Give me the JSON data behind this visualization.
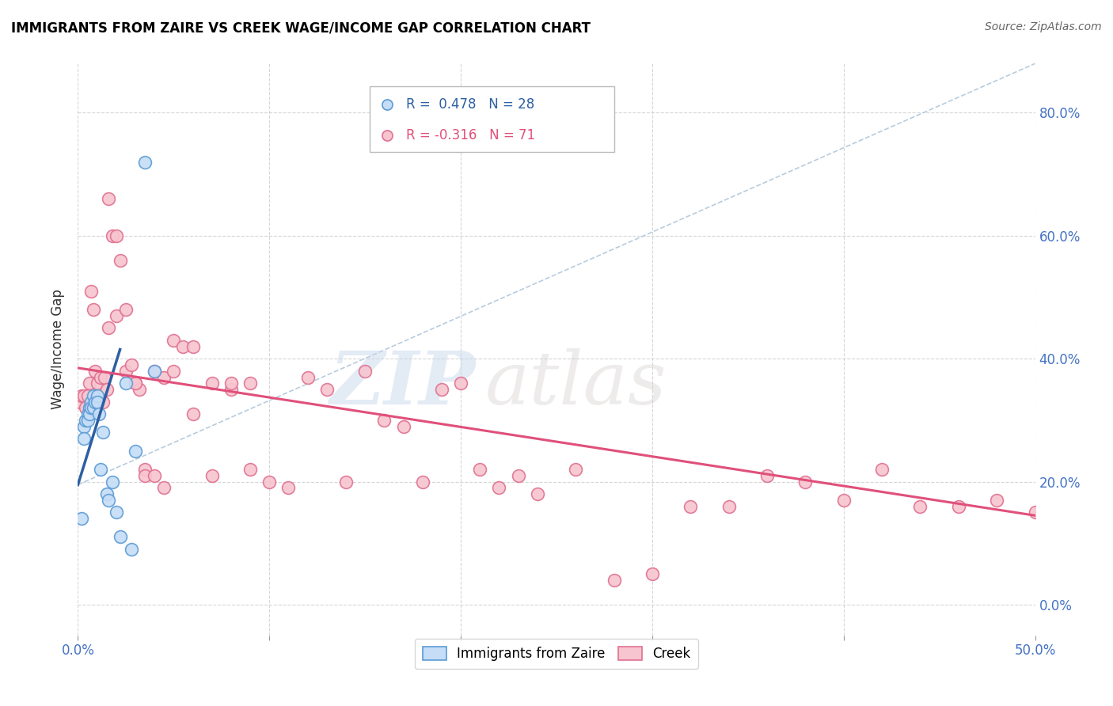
{
  "title": "IMMIGRANTS FROM ZAIRE VS CREEK WAGE/INCOME GAP CORRELATION CHART",
  "source": "Source: ZipAtlas.com",
  "ylabel": "Wage/Income Gap",
  "xlim": [
    0.0,
    0.5
  ],
  "ylim": [
    -0.05,
    0.88
  ],
  "yticks_right": [
    0.0,
    0.2,
    0.4,
    0.6,
    0.8
  ],
  "ytick_right_labels": [
    "0.0%",
    "20.0%",
    "40.0%",
    "60.0%",
    "80.0%"
  ],
  "legend1_R": "0.478",
  "legend1_N": "28",
  "legend2_R": "-0.316",
  "legend2_N": "71",
  "color_blue_fill": "#c5ddf7",
  "color_blue_edge": "#5b9bd5",
  "color_blue_line": "#2e5fa3",
  "color_pink_fill": "#f7c5cf",
  "color_pink_edge": "#e07090",
  "color_pink_line": "#e0507a",
  "color_dashed": "#b8ccde",
  "watermark_zip": "ZIP",
  "watermark_atlas": "atlas",
  "blue_dots_x": [
    0.002,
    0.003,
    0.003,
    0.004,
    0.005,
    0.005,
    0.006,
    0.006,
    0.007,
    0.007,
    0.008,
    0.008,
    0.009,
    0.01,
    0.01,
    0.011,
    0.012,
    0.013,
    0.015,
    0.016,
    0.018,
    0.02,
    0.022,
    0.025,
    0.028,
    0.03,
    0.035,
    0.04
  ],
  "blue_dots_y": [
    0.14,
    0.29,
    0.27,
    0.3,
    0.31,
    0.3,
    0.32,
    0.31,
    0.33,
    0.32,
    0.34,
    0.32,
    0.33,
    0.34,
    0.33,
    0.31,
    0.22,
    0.28,
    0.18,
    0.17,
    0.2,
    0.15,
    0.11,
    0.36,
    0.09,
    0.25,
    0.72,
    0.38
  ],
  "pink_dots_x": [
    0.001,
    0.002,
    0.003,
    0.004,
    0.005,
    0.006,
    0.007,
    0.008,
    0.009,
    0.01,
    0.012,
    0.013,
    0.014,
    0.015,
    0.016,
    0.018,
    0.02,
    0.022,
    0.025,
    0.028,
    0.03,
    0.032,
    0.035,
    0.04,
    0.045,
    0.05,
    0.055,
    0.06,
    0.07,
    0.08,
    0.09,
    0.1,
    0.11,
    0.12,
    0.13,
    0.14,
    0.15,
    0.16,
    0.17,
    0.18,
    0.19,
    0.2,
    0.21,
    0.22,
    0.23,
    0.24,
    0.26,
    0.28,
    0.3,
    0.32,
    0.34,
    0.36,
    0.38,
    0.4,
    0.42,
    0.44,
    0.46,
    0.48,
    0.5,
    0.016,
    0.02,
    0.025,
    0.03,
    0.035,
    0.04,
    0.045,
    0.05,
    0.06,
    0.07,
    0.08,
    0.09
  ],
  "pink_dots_y": [
    0.33,
    0.34,
    0.34,
    0.32,
    0.34,
    0.36,
    0.51,
    0.48,
    0.38,
    0.36,
    0.37,
    0.33,
    0.37,
    0.35,
    0.66,
    0.6,
    0.47,
    0.56,
    0.38,
    0.39,
    0.36,
    0.35,
    0.22,
    0.38,
    0.37,
    0.43,
    0.42,
    0.42,
    0.36,
    0.35,
    0.36,
    0.2,
    0.19,
    0.37,
    0.35,
    0.2,
    0.38,
    0.3,
    0.29,
    0.2,
    0.35,
    0.36,
    0.22,
    0.19,
    0.21,
    0.18,
    0.22,
    0.04,
    0.05,
    0.16,
    0.16,
    0.21,
    0.2,
    0.17,
    0.22,
    0.16,
    0.16,
    0.17,
    0.15,
    0.45,
    0.6,
    0.48,
    0.36,
    0.21,
    0.21,
    0.19,
    0.38,
    0.31,
    0.21,
    0.36,
    0.22
  ],
  "blue_line_x": [
    0.0,
    0.022
  ],
  "blue_line_y": [
    0.195,
    0.415
  ],
  "dashed_line_x": [
    0.0,
    0.5
  ],
  "dashed_line_y": [
    0.195,
    0.88
  ],
  "pink_line_x": [
    0.0,
    0.5
  ],
  "pink_line_y": [
    0.385,
    0.145
  ]
}
